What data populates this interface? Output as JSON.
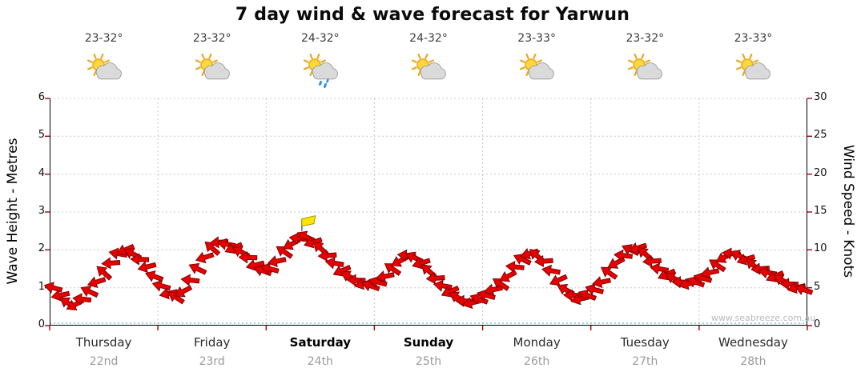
{
  "title": "7 day wind & wave forecast for Yarwun",
  "watermark": "www.seabreeze.com.au",
  "left_axis": {
    "label": "Wave Height - Metres",
    "ticks": [
      0,
      1,
      2,
      3,
      4,
      5,
      6
    ],
    "min": 0,
    "max": 6
  },
  "right_axis": {
    "label": "Wind Speed - Knots",
    "ticks": [
      0,
      5,
      10,
      15,
      20,
      25,
      30
    ],
    "min": 0,
    "max": 30
  },
  "days": [
    {
      "name": "Thursday",
      "date": "22nd",
      "temp": "23-32°",
      "icon": "partly-cloudy",
      "bold": false
    },
    {
      "name": "Friday",
      "date": "23rd",
      "temp": "23-32°",
      "icon": "partly-cloudy",
      "bold": false
    },
    {
      "name": "Saturday",
      "date": "24th",
      "temp": "24-32°",
      "icon": "partly-cloudy-showers",
      "bold": true
    },
    {
      "name": "Sunday",
      "date": "25th",
      "temp": "24-32°",
      "icon": "partly-cloudy",
      "bold": true
    },
    {
      "name": "Monday",
      "date": "26th",
      "temp": "23-33°",
      "icon": "partly-cloudy",
      "bold": false
    },
    {
      "name": "Tuesday",
      "date": "27th",
      "temp": "23-32°",
      "icon": "partly-cloudy",
      "bold": false
    },
    {
      "name": "Wednesday",
      "date": "28th",
      "temp": "23-33°",
      "icon": "partly-cloudy",
      "bold": false
    }
  ],
  "chart_data": {
    "type": "scatter",
    "marker": "wind-arrow",
    "title": "7 day wind & wave forecast for Yarwun",
    "categories": [
      "Thursday 22nd",
      "Friday 23rd",
      "Saturday 24th",
      "Sunday 25th",
      "Monday 26th",
      "Tuesday 27th",
      "Wednesday 28th"
    ],
    "samples_per_day": 15,
    "ylabel_left": "Wave Height - Metres",
    "ylabel_right": "Wind Speed - Knots",
    "ylim_left_m": [
      0,
      6
    ],
    "ylim_right_knots": [
      0,
      30
    ],
    "wind_knots_equals": "wave_m * 5",
    "grid": "dotted",
    "wave_height_m": [
      [
        1.0,
        0.8,
        0.6,
        0.55,
        0.7,
        0.9,
        1.15,
        1.4,
        1.65,
        1.9,
        2.0,
        1.9,
        1.75,
        1.55,
        1.3
      ],
      [
        1.05,
        0.85,
        0.75,
        0.9,
        1.2,
        1.5,
        1.8,
        2.05,
        2.2,
        2.15,
        2.05,
        1.95,
        1.8,
        1.6,
        1.45
      ],
      [
        1.5,
        1.7,
        1.95,
        2.15,
        2.3,
        2.35,
        2.2,
        2.05,
        1.85,
        1.65,
        1.45,
        1.3,
        1.2,
        1.1,
        1.05
      ],
      [
        1.15,
        1.3,
        1.5,
        1.7,
        1.85,
        1.8,
        1.65,
        1.45,
        1.25,
        1.05,
        0.9,
        0.75,
        0.65,
        0.6,
        0.7
      ],
      [
        0.8,
        0.95,
        1.1,
        1.3,
        1.55,
        1.75,
        1.9,
        1.85,
        1.7,
        1.45,
        1.2,
        0.95,
        0.8,
        0.7,
        0.8
      ],
      [
        0.95,
        1.15,
        1.4,
        1.65,
        1.85,
        2.0,
        2.05,
        1.9,
        1.7,
        1.5,
        1.35,
        1.25,
        1.15,
        1.1,
        1.15
      ],
      [
        1.25,
        1.4,
        1.6,
        1.8,
        1.9,
        1.85,
        1.75,
        1.6,
        1.5,
        1.4,
        1.3,
        1.2,
        1.1,
        1.0,
        0.95
      ]
    ],
    "arrow_angles_deg_pattern": [
      195,
      168,
      214,
      152,
      186,
      205,
      162,
      222,
      176,
      190,
      156,
      208,
      182,
      166,
      200
    ],
    "event_marker": {
      "day": "Saturday",
      "t_days": 2.33,
      "wave_m": 2.5,
      "symbol": "yellow-flag"
    },
    "colors": {
      "arrow": "#e60000",
      "arrow_outline": "#7a0000",
      "grid": "#c9c9c9",
      "baseline": "#2ab8b8",
      "tick": "#aa0000",
      "axis": "#000000",
      "flag": "#ffe400"
    }
  }
}
